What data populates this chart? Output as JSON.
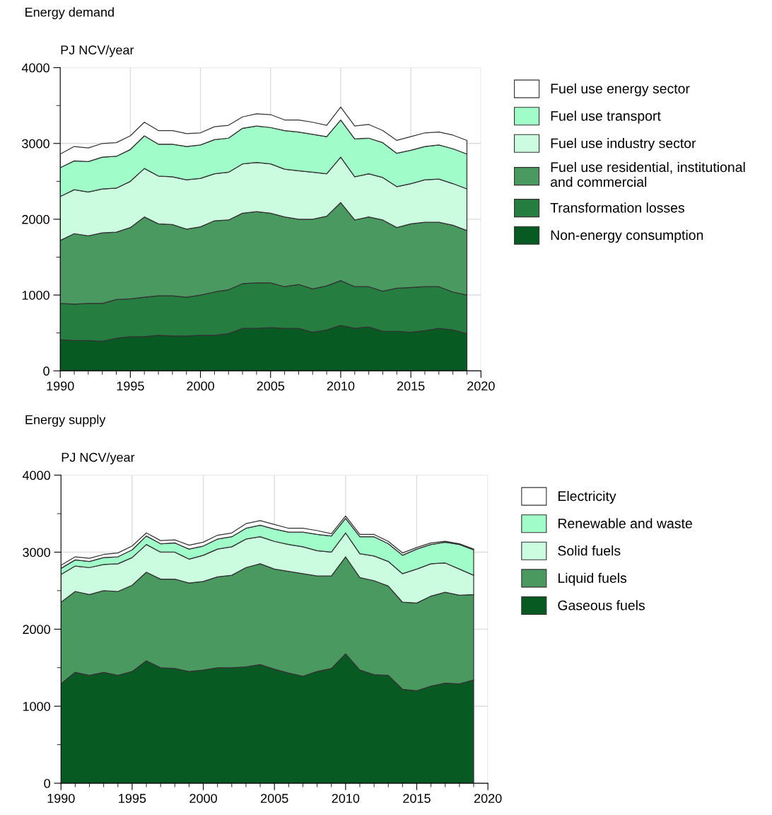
{
  "chart_data": [
    {
      "type": "area",
      "stacked": true,
      "title": "Energy demand",
      "ylabel": "PJ NCV/year",
      "x": [
        1990,
        1991,
        1992,
        1993,
        1994,
        1995,
        1996,
        1997,
        1998,
        1999,
        2000,
        2001,
        2002,
        2003,
        2004,
        2005,
        2006,
        2007,
        2008,
        2009,
        2010,
        2011,
        2012,
        2013,
        2014,
        2015,
        2016,
        2017,
        2018,
        2019
      ],
      "series": [
        {
          "name": "Non-energy consumption",
          "color": "#075a22",
          "values": [
            410,
            400,
            400,
            390,
            430,
            450,
            450,
            470,
            460,
            460,
            470,
            470,
            490,
            560,
            560,
            570,
            560,
            560,
            510,
            540,
            600,
            560,
            580,
            520,
            520,
            510,
            530,
            560,
            540,
            490
          ]
        },
        {
          "name": "Transformation losses",
          "color": "#267d40",
          "values": [
            480,
            480,
            490,
            500,
            510,
            500,
            520,
            520,
            530,
            510,
            530,
            570,
            580,
            590,
            600,
            590,
            550,
            580,
            570,
            580,
            590,
            550,
            530,
            530,
            570,
            590,
            580,
            550,
            500,
            510
          ]
        },
        {
          "name": "Fuel use residential, institutional and commercial",
          "color": "#4a9960",
          "values": [
            830,
            930,
            890,
            930,
            890,
            940,
            1060,
            950,
            940,
            900,
            900,
            940,
            920,
            930,
            940,
            920,
            920,
            860,
            920,
            920,
            1030,
            880,
            920,
            940,
            800,
            840,
            850,
            850,
            880,
            850
          ]
        },
        {
          "name": "Fuel use industry sector",
          "color": "#ccfce0",
          "values": [
            580,
            580,
            580,
            580,
            580,
            610,
            640,
            630,
            630,
            650,
            640,
            620,
            630,
            650,
            650,
            650,
            630,
            640,
            620,
            560,
            600,
            570,
            570,
            560,
            540,
            530,
            560,
            570,
            550,
            550
          ]
        },
        {
          "name": "Fuel use transport",
          "color": "#a0fcc8",
          "values": [
            380,
            380,
            400,
            420,
            420,
            420,
            430,
            420,
            430,
            440,
            440,
            450,
            450,
            470,
            480,
            480,
            510,
            510,
            500,
            490,
            490,
            500,
            470,
            460,
            440,
            440,
            440,
            450,
            460,
            460
          ]
        },
        {
          "name": "Fuel use energy sector",
          "color": "#ffffff",
          "values": [
            180,
            190,
            180,
            180,
            180,
            180,
            180,
            180,
            180,
            170,
            160,
            170,
            170,
            150,
            160,
            170,
            140,
            160,
            160,
            150,
            170,
            170,
            180,
            160,
            170,
            180,
            180,
            170,
            180,
            180
          ]
        }
      ],
      "xlim": [
        1990,
        2020
      ],
      "xticks": [
        1990,
        1995,
        2000,
        2005,
        2010,
        2015,
        2020
      ],
      "ylim": [
        0,
        4000
      ],
      "yticks": [
        0,
        1000,
        2000,
        3000,
        4000
      ],
      "grid": true,
      "legend": "right"
    },
    {
      "type": "area",
      "stacked": true,
      "title": "Energy supply",
      "ylabel": "PJ NCV/year",
      "x": [
        1990,
        1991,
        1992,
        1993,
        1994,
        1995,
        1996,
        1997,
        1998,
        1999,
        2000,
        2001,
        2002,
        2003,
        2004,
        2005,
        2006,
        2007,
        2008,
        2009,
        2010,
        2011,
        2012,
        2013,
        2014,
        2015,
        2016,
        2017,
        2018,
        2019
      ],
      "series": [
        {
          "name": "Gaseous fuels",
          "color": "#075a22",
          "values": [
            1290,
            1440,
            1400,
            1440,
            1400,
            1450,
            1590,
            1500,
            1490,
            1450,
            1470,
            1500,
            1500,
            1510,
            1540,
            1480,
            1430,
            1390,
            1450,
            1490,
            1680,
            1470,
            1410,
            1400,
            1220,
            1200,
            1260,
            1300,
            1290,
            1340
          ]
        },
        {
          "name": "Liquid fuels",
          "color": "#4a9960",
          "values": [
            1060,
            1050,
            1050,
            1060,
            1090,
            1120,
            1150,
            1150,
            1160,
            1150,
            1150,
            1180,
            1200,
            1290,
            1310,
            1300,
            1320,
            1330,
            1240,
            1200,
            1260,
            1200,
            1220,
            1160,
            1130,
            1140,
            1170,
            1180,
            1150,
            1110
          ]
        },
        {
          "name": "Solid fuels",
          "color": "#ccfce0",
          "values": [
            360,
            330,
            350,
            340,
            360,
            360,
            360,
            350,
            350,
            310,
            340,
            360,
            370,
            370,
            350,
            360,
            350,
            350,
            330,
            310,
            310,
            310,
            320,
            320,
            370,
            440,
            420,
            380,
            340,
            250
          ]
        },
        {
          "name": "Renewable and waste",
          "color": "#a0fcc8",
          "values": [
            80,
            80,
            80,
            90,
            90,
            100,
            110,
            110,
            120,
            130,
            120,
            130,
            130,
            140,
            150,
            160,
            160,
            190,
            210,
            210,
            190,
            220,
            250,
            230,
            240,
            260,
            250,
            270,
            320,
            330
          ]
        },
        {
          "name": "Electricity",
          "color": "#ffffff",
          "values": [
            40,
            40,
            40,
            40,
            50,
            50,
            40,
            40,
            40,
            50,
            50,
            50,
            50,
            60,
            60,
            60,
            50,
            50,
            50,
            30,
            30,
            30,
            30,
            30,
            30,
            20,
            20,
            10,
            10,
            10
          ]
        }
      ],
      "xlim": [
        1990,
        2020
      ],
      "xticks": [
        1990,
        1995,
        2000,
        2005,
        2010,
        2015,
        2020
      ],
      "ylim": [
        0,
        4000
      ],
      "yticks": [
        0,
        1000,
        2000,
        3000,
        4000
      ],
      "grid": true,
      "legend": "right"
    }
  ]
}
